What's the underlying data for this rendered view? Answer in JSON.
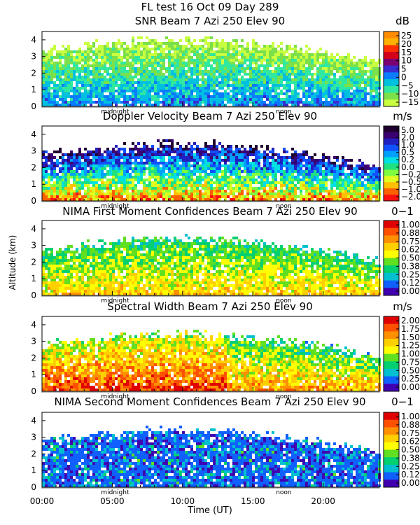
{
  "title": "FL test  16 Oct 09 Day 289",
  "ylabel": "Altitude (km)",
  "xlabel": "Time (UT)",
  "x_ticks": [
    "00:00",
    "05:00",
    "10:00",
    "15:00",
    "20:00"
  ],
  "markers": [
    "midnight",
    "noon"
  ],
  "chart_data": [
    {
      "type": "heatmap",
      "title": "SNR Beam 7 Azi 250 Elev 90",
      "unit": "dB",
      "y_ticks": [
        "0",
        "1",
        "2",
        "3",
        "4"
      ],
      "ylim": [
        0,
        4.5
      ],
      "xlim": [
        0,
        24
      ],
      "colorbar": {
        "labels": [
          "25",
          "20",
          "15",
          "10",
          "5",
          "0",
          "−5",
          "−10",
          "−15"
        ],
        "colors": [
          "#ff8c00",
          "#ffb000",
          "#ff3000",
          "#d4001a",
          "#7a0070",
          "#3a2bd0",
          "#0a7cff",
          "#00c0e0",
          "#30e8a0",
          "#7ce04a",
          "#c8ff40"
        ]
      }
    },
    {
      "type": "heatmap",
      "title": "Doppler Velocity Beam 7 Azi 250 Elev 90",
      "unit": "m/s",
      "y_ticks": [
        "0",
        "1",
        "2",
        "3",
        "4"
      ],
      "ylim": [
        0,
        4.5
      ],
      "xlim": [
        0,
        24
      ],
      "colorbar": {
        "labels": [
          "5.0",
          "2.0",
          "1.0",
          "0.5",
          "0.2",
          "0.0",
          "−0.2",
          "−0.5",
          "−1.0",
          "−2.0"
        ],
        "colors": [
          "#200030",
          "#3a0070",
          "#2020c0",
          "#1050ff",
          "#00a0ff",
          "#00e0e0",
          "#20e080",
          "#80ff40",
          "#e0ff20",
          "#ffc000",
          "#ff6000",
          "#ff1010"
        ]
      }
    },
    {
      "type": "heatmap",
      "title": "NIMA First Moment Confidences Beam 7 Azi 250 Elev 90",
      "unit": "0−1",
      "y_ticks": [
        "0",
        "1",
        "2",
        "3",
        "4"
      ],
      "ylim": [
        0,
        4.5
      ],
      "xlim": [
        0,
        24
      ],
      "colorbar": {
        "labels": [
          "1.00",
          "0.88",
          "0.75",
          "0.62",
          "0.50",
          "0.38",
          "0.25",
          "0.12",
          "0.00"
        ],
        "colors": [
          "#e00000",
          "#ff5000",
          "#ff9000",
          "#ffd000",
          "#ffff00",
          "#60e020",
          "#00d070",
          "#00c0d0",
          "#1060ff",
          "#4000b0"
        ]
      }
    },
    {
      "type": "heatmap",
      "title": "Spectral Width Beam 7 Azi 250 Elev 90",
      "unit": "m/s",
      "y_ticks": [
        "0",
        "1",
        "2",
        "3",
        "4"
      ],
      "ylim": [
        0,
        4.5
      ],
      "xlim": [
        0,
        24
      ],
      "colorbar": {
        "labels": [
          "2.00",
          "1.75",
          "1.50",
          "1.25",
          "1.00",
          "0.75",
          "0.50",
          "0.25",
          "0.00"
        ],
        "colors": [
          "#e00000",
          "#ff5000",
          "#ff9000",
          "#ffd000",
          "#ffff00",
          "#60e020",
          "#00d070",
          "#00c0d0",
          "#1060ff",
          "#4000b0"
        ]
      }
    },
    {
      "type": "heatmap",
      "title": "NIMA Second Moment Confidences Beam 7 Azi 250 Elev 90",
      "unit": "0−1",
      "y_ticks": [
        "0",
        "1",
        "2",
        "3",
        "4"
      ],
      "ylim": [
        0,
        4.5
      ],
      "xlim": [
        0,
        24
      ],
      "colorbar": {
        "labels": [
          "1.00",
          "0.88",
          "0.75",
          "0.62",
          "0.50",
          "0.38",
          "0.25",
          "0.12",
          "0.00"
        ],
        "colors": [
          "#e00000",
          "#ff5000",
          "#ff9000",
          "#ffd000",
          "#ffff00",
          "#60e020",
          "#00d070",
          "#00c0d0",
          "#1060ff",
          "#4000b0"
        ]
      }
    }
  ]
}
